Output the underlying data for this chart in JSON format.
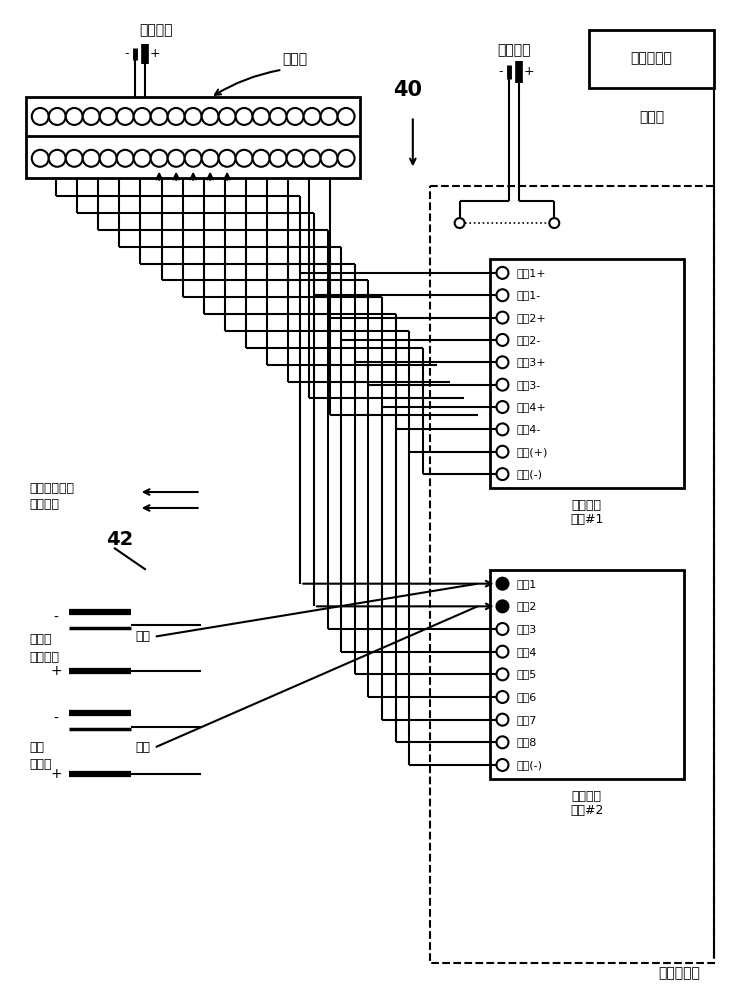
{
  "bg_color": "#ffffff",
  "line_color": "#000000",
  "fig_width": 7.31,
  "fig_height": 10.0,
  "dpi": 100,
  "label_shebei_power": "设备电源",
  "label_minus1": "-",
  "label_plus1": "+",
  "label_jxb": "接线板",
  "label_40": "40",
  "label_modzupow": "模组电源",
  "label_minus2": "-",
  "label_plus2": "+",
  "label_control_pc": "控制计算机",
  "label_ethernet": "以太网",
  "label_yejchuan_line1": "乙二醇变速泵",
  "label_yejchuan_line2": "致动信号",
  "label_42": "42",
  "label_yej_pressure_line1": "乙二醇",
  "label_yej_pressure_line2": "压力信号",
  "label_minus3": "-",
  "label_plus3": "+",
  "label_signal1": "信号",
  "label_flow_line1": "流量",
  "label_flow_line2": "计信号",
  "label_minus4": "-",
  "label_plus4": "+",
  "label_signal2": "信号",
  "label_modzu_pc": "模组计算机",
  "mod1_label_line1": "电流输出",
  "mod1_label_line2": "模组#1",
  "mod2_label_line1": "电压输入",
  "mod2_label_line2": "模组#2",
  "mod1_terminals": [
    "输出1+",
    "输出1-",
    "输出2+",
    "输出2-",
    "输出3+",
    "输出3-",
    "输出4+",
    "输出4-",
    "电源(+)",
    "共通(-)"
  ],
  "mod2_terminals": [
    "输入1",
    "输入2",
    "输入3",
    "输入4",
    "输入5",
    "输入6",
    "输入7",
    "输入8",
    "共通(-)"
  ]
}
